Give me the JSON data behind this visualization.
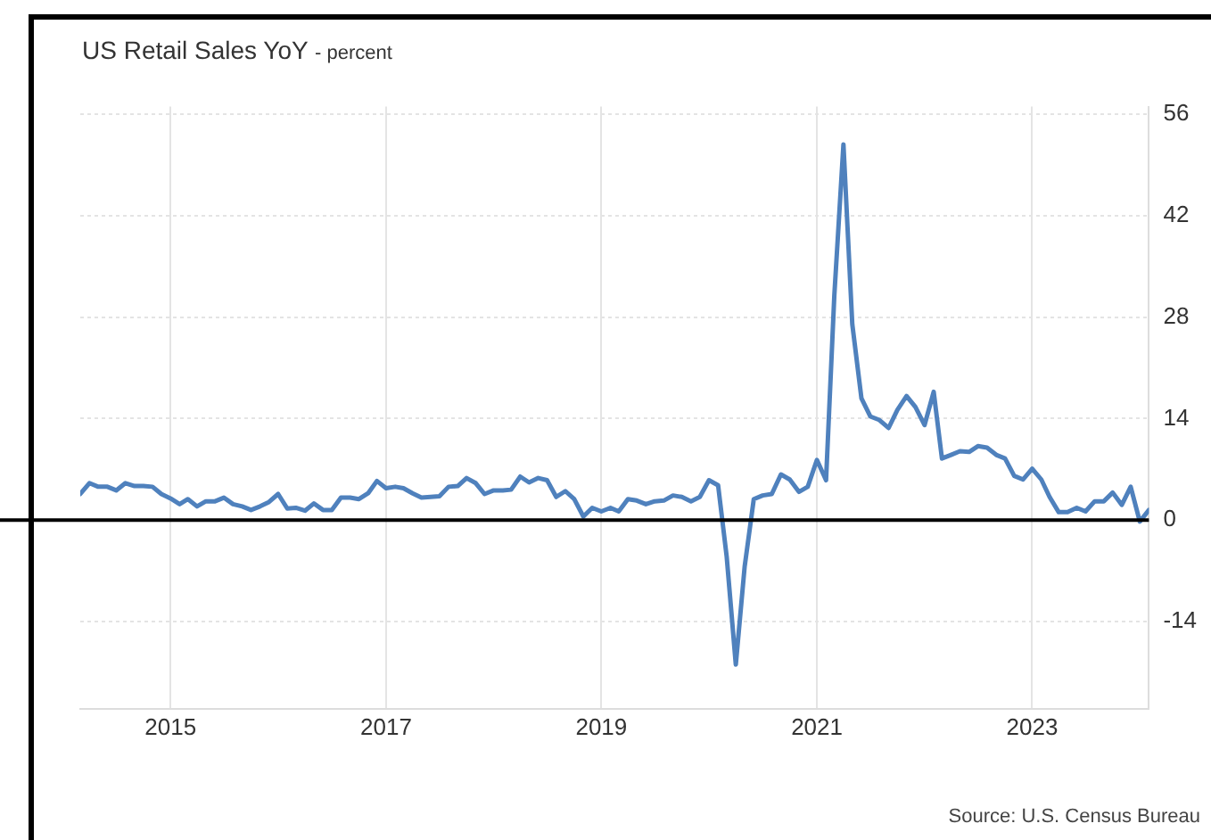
{
  "chart_data": {
    "type": "line",
    "title": "US Retail Sales YoY",
    "subtitle": "- percent",
    "annotations": [
      "Source: U.S. Census Bureau"
    ],
    "x": [
      "2014-03",
      "2014-04",
      "2014-05",
      "2014-06",
      "2014-07",
      "2014-08",
      "2014-09",
      "2014-10",
      "2014-11",
      "2014-12",
      "2015-01",
      "2015-02",
      "2015-03",
      "2015-04",
      "2015-05",
      "2015-06",
      "2015-07",
      "2015-08",
      "2015-09",
      "2015-10",
      "2015-11",
      "2015-12",
      "2016-01",
      "2016-02",
      "2016-03",
      "2016-04",
      "2016-05",
      "2016-06",
      "2016-07",
      "2016-08",
      "2016-09",
      "2016-10",
      "2016-11",
      "2016-12",
      "2017-01",
      "2017-02",
      "2017-03",
      "2017-04",
      "2017-05",
      "2017-06",
      "2017-07",
      "2017-08",
      "2017-09",
      "2017-10",
      "2017-11",
      "2017-12",
      "2018-01",
      "2018-02",
      "2018-03",
      "2018-04",
      "2018-05",
      "2018-06",
      "2018-07",
      "2018-08",
      "2018-09",
      "2018-10",
      "2018-11",
      "2018-12",
      "2019-01",
      "2019-02",
      "2019-03",
      "2019-04",
      "2019-05",
      "2019-06",
      "2019-07",
      "2019-08",
      "2019-09",
      "2019-10",
      "2019-11",
      "2019-12",
      "2020-01",
      "2020-02",
      "2020-03",
      "2020-04",
      "2020-05",
      "2020-06",
      "2020-07",
      "2020-08",
      "2020-09",
      "2020-10",
      "2020-11",
      "2020-12",
      "2021-01",
      "2021-02",
      "2021-03",
      "2021-04",
      "2021-05",
      "2021-06",
      "2021-07",
      "2021-08",
      "2021-09",
      "2021-10",
      "2021-11",
      "2021-12",
      "2022-01",
      "2022-02",
      "2022-03",
      "2022-04",
      "2022-05",
      "2022-06",
      "2022-07",
      "2022-08",
      "2022-09",
      "2022-10",
      "2022-11",
      "2022-12",
      "2023-01",
      "2023-02",
      "2023-03",
      "2023-04",
      "2023-05",
      "2023-06",
      "2023-07",
      "2023-08",
      "2023-09",
      "2023-10",
      "2023-11",
      "2023-12",
      "2024-01",
      "2024-02"
    ],
    "series": [
      {
        "color": "#4f81bd",
        "values": [
          3.6,
          5.1,
          4.6,
          4.6,
          4.1,
          5.1,
          4.7,
          4.7,
          4.6,
          3.6,
          3.0,
          2.2,
          2.9,
          1.9,
          2.6,
          2.6,
          3.1,
          2.2,
          1.9,
          1.4,
          1.9,
          2.5,
          3.6,
          1.6,
          1.7,
          1.3,
          2.3,
          1.4,
          1.4,
          3.1,
          3.1,
          2.9,
          3.7,
          5.4,
          4.4,
          4.6,
          4.4,
          3.7,
          3.1,
          3.2,
          3.3,
          4.6,
          4.7,
          5.8,
          5.1,
          3.6,
          4.1,
          4.1,
          4.2,
          6.0,
          5.2,
          5.8,
          5.5,
          3.2,
          4.0,
          2.9,
          0.5,
          1.7,
          1.2,
          1.7,
          1.2,
          2.9,
          2.7,
          2.2,
          2.6,
          2.7,
          3.4,
          3.2,
          2.6,
          3.2,
          5.5,
          4.8,
          -5,
          -19.9,
          -6.4,
          2.9,
          3.4,
          3.6,
          6.3,
          5.6,
          3.9,
          4.6,
          8.3,
          5.5,
          30.9,
          51.8,
          27,
          16.8,
          14.3,
          13.8,
          12.7,
          15.2,
          17.1,
          15.6,
          13.1,
          17.7,
          8.5,
          9.0,
          9.5,
          9.4,
          10.2,
          10.0,
          9.0,
          8.5,
          6.1,
          5.6,
          7.1,
          5.6,
          3.2,
          1.1,
          1.1,
          1.7,
          1.2,
          2.6,
          2.6,
          3.8,
          2.1,
          4.6,
          -0.2,
          1.4
        ]
      }
    ],
    "xlim": [
      "2014-03",
      "2024-02"
    ],
    "xticks": [
      "2015",
      "2017",
      "2019",
      "2021",
      "2023"
    ],
    "ylim": [
      -26,
      57
    ],
    "yticks": [
      -14,
      0,
      14,
      28,
      42,
      56
    ],
    "ref_lines": [
      {
        "axis": "y",
        "value": 0,
        "color": "#000000"
      }
    ],
    "grid": true,
    "legend": false,
    "marker": "none",
    "line_style": "solid"
  }
}
